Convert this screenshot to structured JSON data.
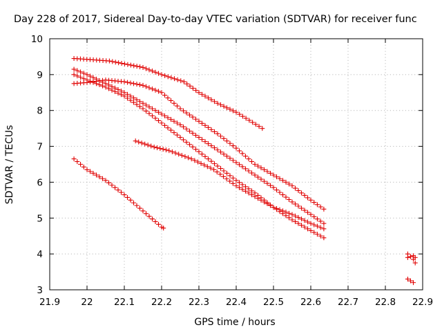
{
  "chart_data": {
    "type": "scatter",
    "title": "Day 228 of 2017, Sidereal Day-to-day VTEC variation (SDTVAR) for receiver func",
    "xlabel": "GPS time / hours",
    "ylabel": "SDTVAR / TECUs",
    "xlim": [
      21.9,
      22.9
    ],
    "ylim": [
      3,
      10
    ],
    "xticks": [
      "21.9",
      "22",
      "22.1",
      "22.2",
      "22.3",
      "22.4",
      "22.5",
      "22.6",
      "22.7",
      "22.8",
      "22.9"
    ],
    "yticks": [
      "3",
      "4",
      "5",
      "6",
      "7",
      "8",
      "9",
      "10"
    ],
    "grid": true,
    "marker": "+",
    "color": "#e00000",
    "step": 0.00833,
    "series": [
      {
        "name": "track-1",
        "knots": [
          [
            21.965,
            9.45
          ],
          [
            22.06,
            9.38
          ],
          [
            22.15,
            9.2
          ],
          [
            22.2,
            9.0
          ],
          [
            22.26,
            8.8
          ],
          [
            22.3,
            8.5
          ],
          [
            22.35,
            8.2
          ],
          [
            22.4,
            7.95
          ],
          [
            22.47,
            7.5
          ]
        ]
      },
      {
        "name": "track-2",
        "knots": [
          [
            21.965,
            9.15
          ],
          [
            22.0,
            9.0
          ],
          [
            22.05,
            8.75
          ],
          [
            22.1,
            8.5
          ],
          [
            22.15,
            8.2
          ],
          [
            22.2,
            7.9
          ],
          [
            22.25,
            7.6
          ],
          [
            22.3,
            7.25
          ],
          [
            22.35,
            6.9
          ],
          [
            22.4,
            6.55
          ],
          [
            22.45,
            6.2
          ],
          [
            22.5,
            5.85
          ],
          [
            22.55,
            5.45
          ],
          [
            22.6,
            5.1
          ],
          [
            22.635,
            4.85
          ]
        ]
      },
      {
        "name": "track-3",
        "knots": [
          [
            21.965,
            9.0
          ],
          [
            22.0,
            8.85
          ],
          [
            22.05,
            8.65
          ],
          [
            22.1,
            8.4
          ],
          [
            22.15,
            8.05
          ],
          [
            22.2,
            7.65
          ],
          [
            22.25,
            7.25
          ],
          [
            22.3,
            6.85
          ],
          [
            22.35,
            6.45
          ],
          [
            22.4,
            6.05
          ],
          [
            22.45,
            5.7
          ],
          [
            22.5,
            5.3
          ],
          [
            22.55,
            4.95
          ],
          [
            22.6,
            4.65
          ],
          [
            22.635,
            4.45
          ]
        ]
      },
      {
        "name": "track-4",
        "knots": [
          [
            21.965,
            8.75
          ],
          [
            22.0,
            8.78
          ],
          [
            22.05,
            8.85
          ],
          [
            22.1,
            8.8
          ],
          [
            22.15,
            8.7
          ],
          [
            22.2,
            8.5
          ],
          [
            22.25,
            8.05
          ],
          [
            22.3,
            7.7
          ],
          [
            22.35,
            7.35
          ],
          [
            22.4,
            6.95
          ],
          [
            22.45,
            6.5
          ],
          [
            22.5,
            6.2
          ],
          [
            22.55,
            5.9
          ],
          [
            22.6,
            5.5
          ],
          [
            22.635,
            5.25
          ]
        ]
      },
      {
        "name": "track-5",
        "knots": [
          [
            22.13,
            7.15
          ],
          [
            22.18,
            6.98
          ],
          [
            22.22,
            6.88
          ],
          [
            22.28,
            6.65
          ],
          [
            22.34,
            6.35
          ],
          [
            22.4,
            5.9
          ],
          [
            22.45,
            5.6
          ],
          [
            22.5,
            5.3
          ],
          [
            22.55,
            5.1
          ],
          [
            22.6,
            4.85
          ],
          [
            22.635,
            4.7
          ]
        ]
      },
      {
        "name": "track-6",
        "knots": [
          [
            21.965,
            6.65
          ],
          [
            22.0,
            6.35
          ],
          [
            22.05,
            6.05
          ],
          [
            22.1,
            5.65
          ],
          [
            22.15,
            5.2
          ],
          [
            22.2,
            4.75
          ],
          [
            22.205,
            4.72
          ]
        ]
      },
      {
        "name": "track-7",
        "knots": [
          [
            22.86,
            4.0
          ],
          [
            22.875,
            3.85
          ],
          [
            22.88,
            3.75
          ]
        ]
      },
      {
        "name": "track-8",
        "knots": [
          [
            22.86,
            3.9
          ],
          [
            22.875,
            3.95
          ],
          [
            22.88,
            3.9
          ]
        ]
      },
      {
        "name": "track-9",
        "knots": [
          [
            22.86,
            3.3
          ],
          [
            22.875,
            3.2
          ]
        ]
      }
    ]
  }
}
